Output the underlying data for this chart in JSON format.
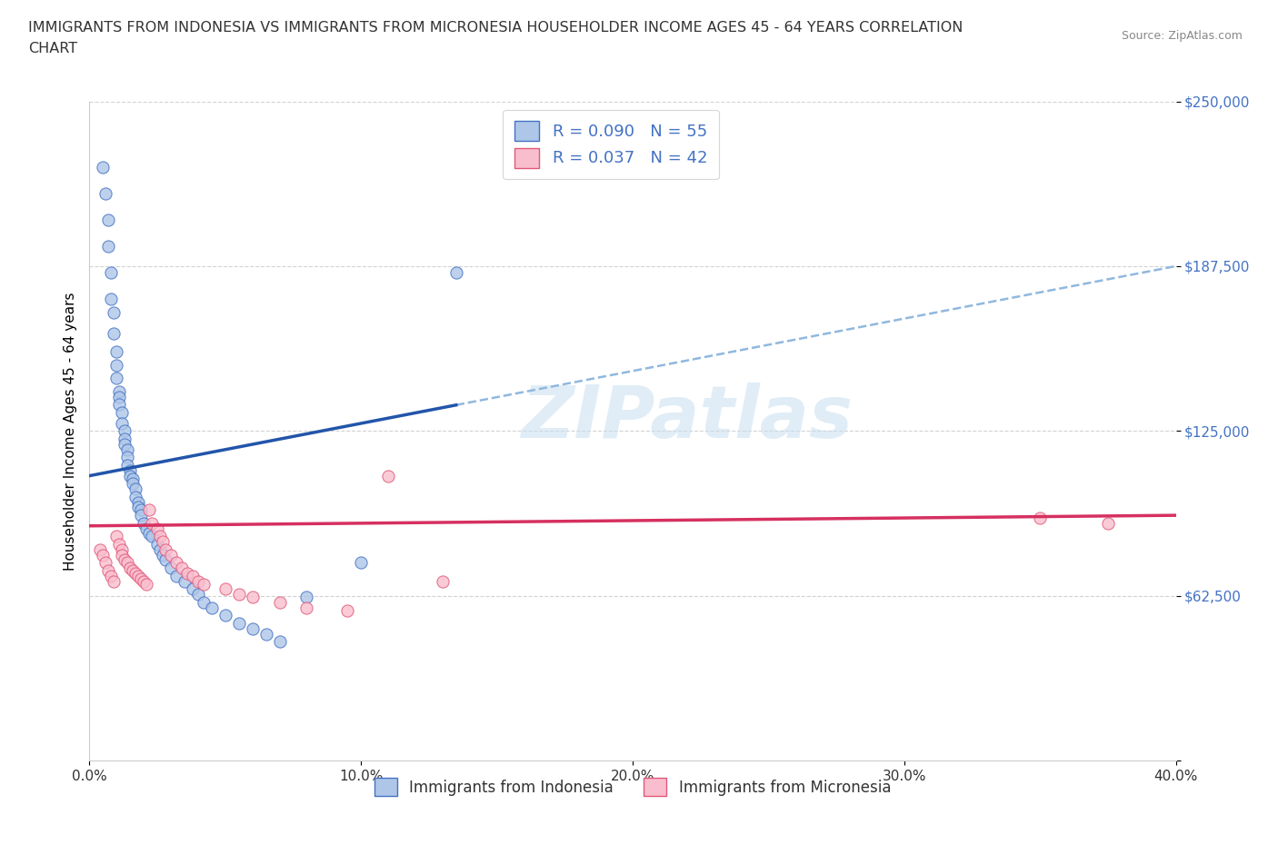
{
  "title_line1": "IMMIGRANTS FROM INDONESIA VS IMMIGRANTS FROM MICRONESIA HOUSEHOLDER INCOME AGES 45 - 64 YEARS CORRELATION",
  "title_line2": "CHART",
  "source": "Source: ZipAtlas.com",
  "ylabel_label": "Householder Income Ages 45 - 64 years",
  "x_min": 0.0,
  "x_max": 0.4,
  "y_min": 0,
  "y_max": 250000,
  "x_ticks": [
    0.0,
    0.1,
    0.2,
    0.3,
    0.4
  ],
  "x_tick_labels": [
    "0.0%",
    "10.0%",
    "20.0%",
    "30.0%",
    "40.0%"
  ],
  "y_ticks": [
    0,
    62500,
    125000,
    187500,
    250000
  ],
  "y_tick_labels": [
    "",
    "$62,500",
    "$125,000",
    "$187,500",
    "$250,000"
  ],
  "indonesia_fill_color": "#aec6e8",
  "indonesia_edge_color": "#4472c4",
  "micronesia_fill_color": "#f9bece",
  "micronesia_edge_color": "#e05878",
  "indonesia_line_color": "#2255aa",
  "micronesia_line_color": "#d63060",
  "dashed_line_color": "#90b8de",
  "watermark_text": "ZIPatlas",
  "R_indonesia": 0.09,
  "N_indonesia": 55,
  "R_micronesia": 0.037,
  "N_micronesia": 42,
  "indonesia_x": [
    0.005,
    0.006,
    0.007,
    0.007,
    0.008,
    0.008,
    0.009,
    0.009,
    0.01,
    0.01,
    0.01,
    0.011,
    0.011,
    0.011,
    0.012,
    0.012,
    0.013,
    0.013,
    0.013,
    0.014,
    0.014,
    0.014,
    0.015,
    0.015,
    0.016,
    0.016,
    0.017,
    0.017,
    0.018,
    0.018,
    0.019,
    0.019,
    0.02,
    0.021,
    0.022,
    0.023,
    0.025,
    0.026,
    0.027,
    0.028,
    0.03,
    0.032,
    0.035,
    0.038,
    0.04,
    0.042,
    0.045,
    0.05,
    0.055,
    0.06,
    0.065,
    0.07,
    0.08,
    0.1,
    0.135
  ],
  "indonesia_y": [
    225000,
    215000,
    205000,
    195000,
    185000,
    175000,
    170000,
    162000,
    155000,
    150000,
    145000,
    140000,
    138000,
    135000,
    132000,
    128000,
    125000,
    122000,
    120000,
    118000,
    115000,
    112000,
    110000,
    108000,
    107000,
    105000,
    103000,
    100000,
    98000,
    96000,
    95000,
    93000,
    90000,
    88000,
    86000,
    85000,
    82000,
    80000,
    78000,
    76000,
    73000,
    70000,
    68000,
    65000,
    63000,
    60000,
    58000,
    55000,
    52000,
    50000,
    48000,
    45000,
    62000,
    75000,
    185000
  ],
  "micronesia_x": [
    0.004,
    0.005,
    0.006,
    0.007,
    0.008,
    0.009,
    0.01,
    0.011,
    0.012,
    0.012,
    0.013,
    0.014,
    0.015,
    0.016,
    0.017,
    0.018,
    0.019,
    0.02,
    0.021,
    0.022,
    0.023,
    0.025,
    0.026,
    0.027,
    0.028,
    0.03,
    0.032,
    0.034,
    0.036,
    0.038,
    0.04,
    0.042,
    0.05,
    0.055,
    0.06,
    0.07,
    0.08,
    0.095,
    0.11,
    0.13,
    0.35,
    0.375
  ],
  "micronesia_y": [
    80000,
    78000,
    75000,
    72000,
    70000,
    68000,
    85000,
    82000,
    80000,
    78000,
    76000,
    75000,
    73000,
    72000,
    71000,
    70000,
    69000,
    68000,
    67000,
    95000,
    90000,
    88000,
    85000,
    83000,
    80000,
    78000,
    75000,
    73000,
    71000,
    70000,
    68000,
    67000,
    65000,
    63000,
    62000,
    60000,
    58000,
    57000,
    108000,
    68000,
    92000,
    90000
  ],
  "indonesia_label": "Immigrants from Indonesia",
  "micronesia_label": "Immigrants from Micronesia"
}
